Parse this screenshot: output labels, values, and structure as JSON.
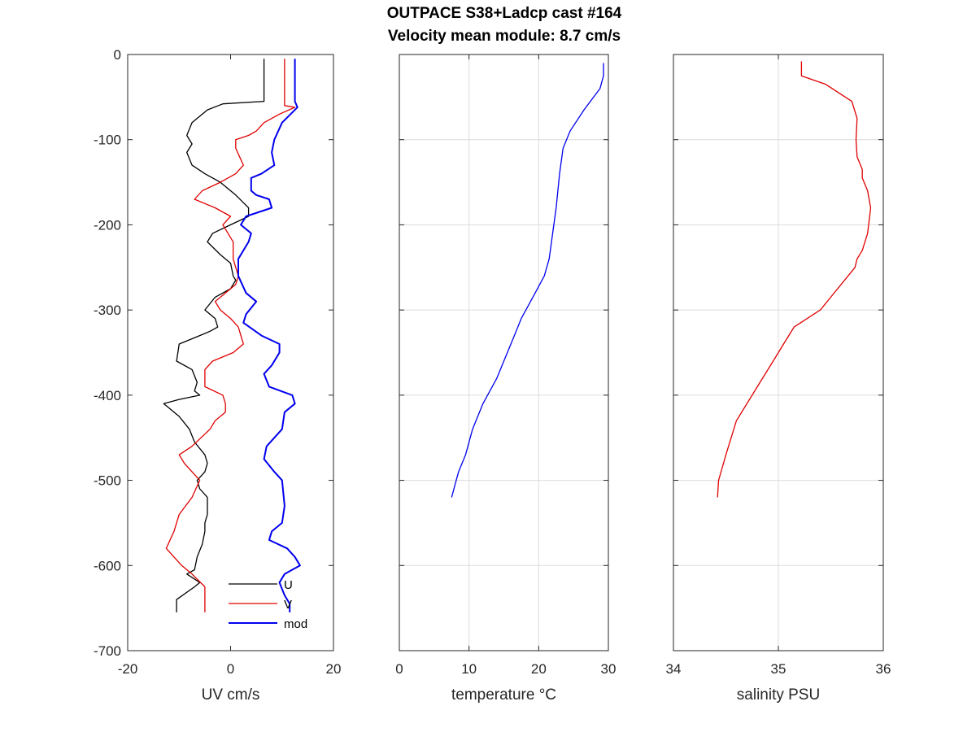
{
  "title_line1": "OUTPACE S38+Ladcp cast #164",
  "title_line2": "Velocity mean module:  8.7 cm/s",
  "chart_data": [
    {
      "type": "line",
      "xlabel": "UV cm/s",
      "ylabel": "",
      "xlim": [
        -20,
        20
      ],
      "ylim": [
        -700,
        0
      ],
      "xticks": [
        -20,
        0,
        20
      ],
      "yticks": [
        0,
        -100,
        -200,
        -300,
        -400,
        -500,
        -600,
        -700
      ],
      "grid": false,
      "legend": {
        "placement": "bottom-right",
        "entries": [
          "U",
          "V",
          "mod"
        ]
      },
      "series": [
        {
          "name": "U",
          "color": "#000000",
          "x": [
            6.5,
            6.5,
            -1.5,
            -4.5,
            -7.5,
            -8.5,
            -7.5,
            -8.5,
            -7.5,
            -5,
            -2,
            1,
            3.5,
            3.5,
            0,
            -3.5,
            -4.5,
            -2,
            0,
            0.5,
            1,
            0,
            -3,
            -5,
            -3,
            -2.5,
            -4,
            -6,
            -10,
            -10.5,
            -7.5,
            -6.5,
            -7,
            -6,
            -10,
            -13,
            -10,
            -8,
            -7,
            -5,
            -4.5,
            -5,
            -6.5,
            -6,
            -4.5,
            -4.5,
            -5,
            -5,
            -5.5,
            -6.5,
            -7,
            -8.5,
            -6,
            -7,
            -10.5,
            -10.5
          ],
          "y": [
            -5,
            -55,
            -58,
            -65,
            -80,
            -95,
            -105,
            -115,
            -130,
            -140,
            -150,
            -165,
            -180,
            -190,
            -200,
            -210,
            -220,
            -235,
            -245,
            -260,
            -265,
            -275,
            -285,
            -300,
            -310,
            -320,
            -325,
            -330,
            -340,
            -360,
            -370,
            -385,
            -395,
            -400,
            -405,
            -410,
            -425,
            -440,
            -455,
            -470,
            -480,
            -490,
            -500,
            -510,
            -520,
            -540,
            -550,
            -560,
            -575,
            -590,
            -605,
            -610,
            -620,
            -625,
            -640,
            -655
          ]
        },
        {
          "name": "V",
          "color": "#e00000",
          "x": [
            10.5,
            10.5,
            12.5,
            9.5,
            6.5,
            5,
            3.5,
            1,
            1,
            2.5,
            1,
            -2,
            -5.5,
            -7,
            -3,
            0,
            -1.5,
            0.5,
            0.5,
            1.5,
            1,
            -1,
            -3,
            -2,
            0,
            1.5,
            2.5,
            0.5,
            -3.5,
            -5,
            -5,
            -1.5,
            -1,
            -1,
            -3,
            -4,
            -7.5,
            -10,
            -9,
            -7.5,
            -6,
            -7.5,
            -10,
            -11,
            -12.5,
            -9.5,
            -7.5,
            -5,
            -5,
            -5
          ],
          "y": [
            -5,
            -60,
            -62,
            -70,
            -80,
            -90,
            -95,
            -100,
            -110,
            -130,
            -140,
            -150,
            -160,
            -170,
            -180,
            -190,
            -200,
            -220,
            -240,
            -260,
            -270,
            -280,
            -290,
            -300,
            -310,
            -320,
            -340,
            -350,
            -360,
            -370,
            -390,
            -400,
            -410,
            -420,
            -430,
            -440,
            -460,
            -470,
            -480,
            -490,
            -500,
            -520,
            -540,
            -560,
            -580,
            -600,
            -610,
            -625,
            -640,
            -655
          ]
        },
        {
          "name": "mod",
          "color": "#0000ee",
          "x": [
            12.5,
            12.5,
            13,
            10,
            8.5,
            8,
            8.5,
            6,
            4,
            4,
            5,
            7.5,
            8,
            3,
            2,
            4,
            3.5,
            1.5,
            1.5,
            3,
            5,
            3,
            2.5,
            6,
            9.5,
            9.5,
            8,
            6.5,
            7.5,
            12,
            12.5,
            10.5,
            10,
            7,
            6.5,
            8.5,
            10,
            10.5,
            10,
            8,
            7.5,
            11,
            12.5,
            13.5,
            10.5,
            9.5,
            10.5,
            11.5,
            11.5
          ],
          "y": [
            -5,
            -55,
            -62,
            -80,
            -100,
            -115,
            -130,
            -140,
            -145,
            -160,
            -165,
            -170,
            -180,
            -190,
            -200,
            -210,
            -220,
            -240,
            -260,
            -280,
            -290,
            -305,
            -315,
            -330,
            -340,
            -350,
            -365,
            -375,
            -390,
            -400,
            -410,
            -420,
            -440,
            -460,
            -475,
            -490,
            -500,
            -530,
            -550,
            -560,
            -570,
            -580,
            -590,
            -600,
            -610,
            -620,
            -635,
            -645,
            -655
          ]
        }
      ]
    },
    {
      "type": "line",
      "xlabel": "temperature °C",
      "ylabel": "",
      "xlim": [
        0,
        30
      ],
      "ylim": [
        -700,
        0
      ],
      "xticks": [
        0,
        10,
        20,
        30
      ],
      "yticks": [
        0,
        -100,
        -200,
        -300,
        -400,
        -500,
        -600,
        -700
      ],
      "grid": true,
      "series": [
        {
          "name": "",
          "color": "#0000ee",
          "x": [
            29.3,
            29.3,
            29.3,
            28.8,
            26.5,
            24.5,
            23.5,
            23,
            22.5,
            22,
            21.5,
            20.8,
            19.5,
            17.5,
            16.5,
            15.5,
            14,
            12,
            10.5,
            9.5,
            8.5,
            8,
            7.5
          ],
          "y": [
            -10,
            -15,
            -25,
            -40,
            -65,
            -90,
            -110,
            -140,
            -180,
            -210,
            -240,
            -260,
            -280,
            -310,
            -330,
            -350,
            -380,
            -410,
            -440,
            -470,
            -490,
            -505,
            -520
          ]
        }
      ]
    },
    {
      "type": "line",
      "xlabel": "salinity PSU",
      "ylabel": "",
      "xlim": [
        34,
        36
      ],
      "ylim": [
        -700,
        0
      ],
      "xticks": [
        34,
        35,
        36
      ],
      "yticks": [
        0,
        -100,
        -200,
        -300,
        -400,
        -500,
        -600,
        -700
      ],
      "grid": true,
      "series": [
        {
          "name": "",
          "color": "#e00000",
          "x": [
            35.22,
            35.22,
            35.45,
            35.7,
            35.75,
            35.74,
            35.75,
            35.8,
            35.8,
            35.85,
            35.88,
            35.85,
            35.8,
            35.75,
            35.73,
            35.4,
            35.15,
            35.05,
            34.95,
            34.8,
            34.6,
            34.5,
            34.43,
            34.42
          ],
          "y": [
            -8,
            -25,
            -35,
            -55,
            -75,
            -100,
            -120,
            -135,
            -145,
            -160,
            -180,
            -210,
            -230,
            -240,
            -250,
            -300,
            -320,
            -340,
            -360,
            -390,
            -430,
            -470,
            -500,
            -520
          ]
        }
      ]
    }
  ]
}
